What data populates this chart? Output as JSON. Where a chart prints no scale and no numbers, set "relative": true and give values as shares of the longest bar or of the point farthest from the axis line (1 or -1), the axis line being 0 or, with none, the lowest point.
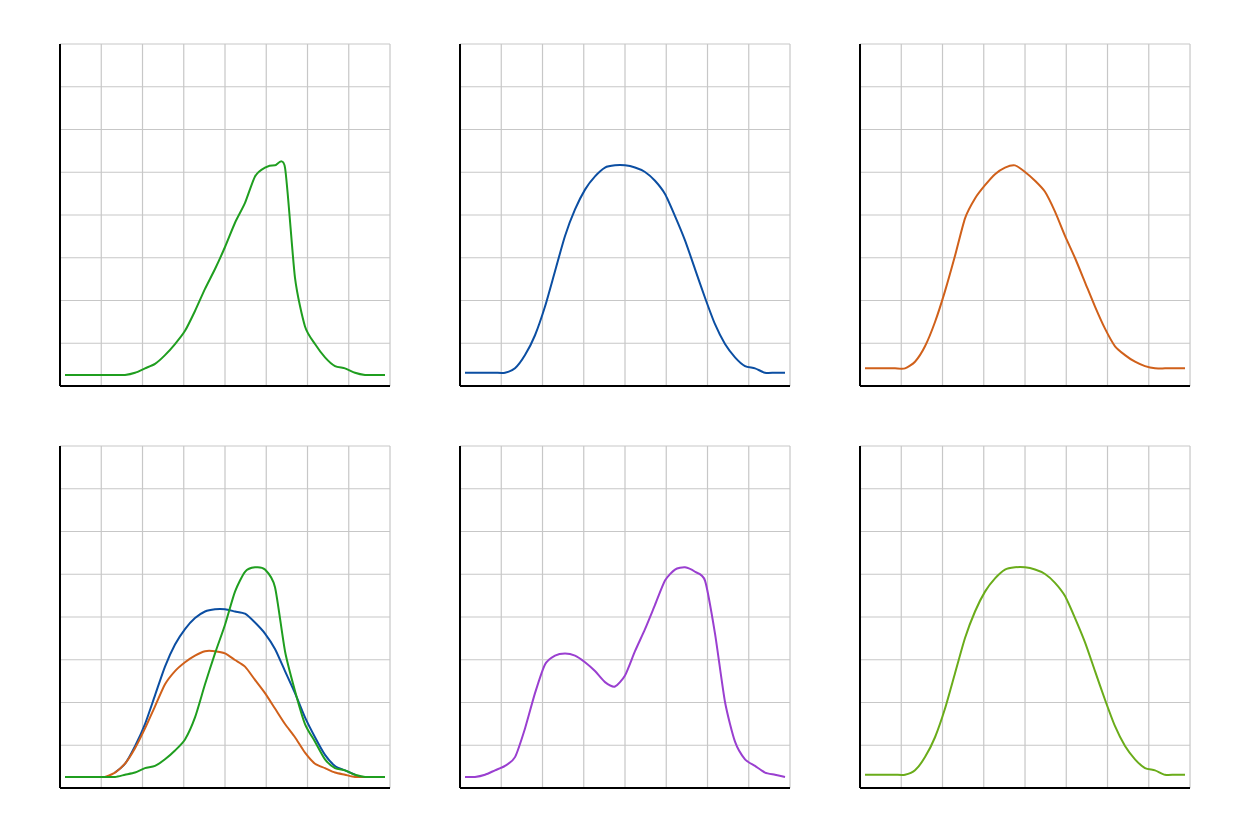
{
  "chart_data": [
    {
      "type": "line",
      "relative": true,
      "grid": true,
      "tick_labels": false,
      "categories": [
        null,
        null,
        null,
        null,
        null,
        null,
        null,
        null,
        null,
        null,
        null,
        null,
        null,
        null,
        null,
        null,
        null,
        null,
        null,
        null,
        null,
        null,
        null,
        null,
        null,
        null,
        null,
        null,
        null,
        null,
        null,
        null,
        null
      ],
      "series": [
        {
          "color": "#1f9e1f",
          "values": [
            0.05,
            0.05,
            0.05,
            0.05,
            0.05,
            0.05,
            0.05,
            0.06,
            0.08,
            0.1,
            0.14,
            0.19,
            0.25,
            0.34,
            0.44,
            0.53,
            0.63,
            0.74,
            0.83,
            0.95,
            0.99,
            1,
            0.99,
            0.49,
            0.27,
            0.19,
            0.13,
            0.09,
            0.08,
            0.06,
            0.05,
            0.05,
            0.05
          ]
        }
      ]
    },
    {
      "type": "line",
      "relative": true,
      "grid": true,
      "tick_labels": false,
      "categories": [
        null,
        null,
        null,
        null,
        null,
        null,
        null,
        null,
        null,
        null,
        null,
        null,
        null,
        null,
        null,
        null,
        null,
        null,
        null,
        null,
        null,
        null,
        null,
        null,
        null,
        null,
        null,
        null,
        null,
        null,
        null,
        null,
        null
      ],
      "series": [
        {
          "color": "#0b4ea2",
          "values": [
            0.06,
            0.06,
            0.06,
            0.06,
            0.06,
            0.08,
            0.14,
            0.23,
            0.36,
            0.52,
            0.68,
            0.8,
            0.89,
            0.95,
            0.99,
            1,
            1,
            0.99,
            0.97,
            0.93,
            0.87,
            0.77,
            0.66,
            0.53,
            0.4,
            0.28,
            0.19,
            0.13,
            0.09,
            0.08,
            0.06,
            0.06,
            0.06
          ]
        }
      ]
    },
    {
      "type": "line",
      "relative": true,
      "grid": true,
      "tick_labels": false,
      "categories": [
        null,
        null,
        null,
        null,
        null,
        null,
        null,
        null,
        null,
        null,
        null,
        null,
        null,
        null,
        null,
        null,
        null,
        null,
        null,
        null,
        null,
        null,
        null,
        null,
        null,
        null,
        null,
        null,
        null,
        null,
        null,
        null,
        null
      ],
      "series": [
        {
          "color": "#d0601a",
          "values": [
            0.08,
            0.08,
            0.08,
            0.08,
            0.08,
            0.11,
            0.18,
            0.29,
            0.43,
            0.59,
            0.76,
            0.85,
            0.91,
            0.96,
            0.99,
            1,
            0.97,
            0.93,
            0.88,
            0.79,
            0.68,
            0.58,
            0.47,
            0.36,
            0.26,
            0.18,
            0.14,
            0.11,
            0.09,
            0.08,
            0.08,
            0.08,
            0.08
          ]
        }
      ]
    },
    {
      "type": "line",
      "relative": true,
      "grid": true,
      "tick_labels": false,
      "categories": [
        null,
        null,
        null,
        null,
        null,
        null,
        null,
        null,
        null,
        null,
        null,
        null,
        null,
        null,
        null,
        null,
        null,
        null,
        null,
        null,
        null,
        null,
        null,
        null,
        null,
        null,
        null,
        null,
        null,
        null,
        null,
        null,
        null
      ],
      "series": [
        {
          "color": "#0b4ea2",
          "values": [
            null,
            null,
            null,
            null,
            null,
            0.07,
            0.11,
            0.19,
            0.29,
            0.42,
            0.55,
            0.65,
            0.72,
            0.77,
            0.8,
            0.81,
            0.81,
            0.8,
            0.79,
            0.75,
            0.7,
            0.63,
            0.53,
            0.43,
            0.32,
            0.23,
            0.15,
            0.1,
            0.08,
            0.06,
            null,
            null,
            null
          ]
        },
        {
          "color": "#d0601a",
          "values": [
            null,
            null,
            null,
            null,
            0.05,
            0.07,
            0.11,
            0.18,
            0.27,
            0.37,
            0.47,
            0.53,
            0.57,
            0.6,
            0.62,
            0.62,
            0.61,
            0.58,
            0.55,
            0.49,
            0.43,
            0.36,
            0.29,
            0.23,
            0.16,
            0.11,
            0.09,
            0.07,
            0.06,
            0.05,
            0.05,
            null,
            null
          ]
        },
        {
          "color": "#1f9e1f",
          "values": [
            0.05,
            0.05,
            0.05,
            0.05,
            0.05,
            0.05,
            0.06,
            0.07,
            0.09,
            0.1,
            0.13,
            0.17,
            0.22,
            0.32,
            0.47,
            0.61,
            0.74,
            0.89,
            0.98,
            1,
            0.99,
            0.91,
            0.62,
            0.44,
            0.29,
            0.21,
            0.13,
            0.09,
            0.08,
            0.06,
            0.05,
            0.05,
            0.05
          ]
        }
      ]
    },
    {
      "type": "line",
      "relative": true,
      "grid": true,
      "tick_labels": false,
      "categories": [
        null,
        null,
        null,
        null,
        null,
        null,
        null,
        null,
        null,
        null,
        null,
        null,
        null,
        null,
        null,
        null,
        null,
        null,
        null,
        null,
        null,
        null,
        null,
        null,
        null,
        null,
        null,
        null,
        null,
        null,
        null,
        null,
        null
      ],
      "series": [
        {
          "color": "#9a3fd0",
          "values": [
            0.05,
            0.05,
            0.06,
            0.08,
            0.1,
            0.14,
            0.27,
            0.43,
            0.56,
            0.6,
            0.61,
            0.6,
            0.57,
            0.53,
            0.48,
            0.46,
            0.51,
            0.62,
            0.72,
            0.83,
            0.94,
            0.99,
            1,
            0.98,
            0.94,
            0.7,
            0.39,
            0.21,
            0.13,
            0.1,
            0.07,
            0.06,
            0.05
          ]
        }
      ]
    },
    {
      "type": "line",
      "relative": true,
      "grid": true,
      "tick_labels": false,
      "categories": [
        null,
        null,
        null,
        null,
        null,
        null,
        null,
        null,
        null,
        null,
        null,
        null,
        null,
        null,
        null,
        null,
        null,
        null,
        null,
        null,
        null,
        null,
        null,
        null,
        null,
        null,
        null,
        null,
        null,
        null,
        null,
        null,
        null
      ],
      "series": [
        {
          "color": "#6aac1a",
          "values": [
            0.06,
            0.06,
            0.06,
            0.06,
            0.06,
            0.08,
            0.14,
            0.23,
            0.36,
            0.52,
            0.68,
            0.8,
            0.89,
            0.95,
            0.99,
            1,
            1,
            0.99,
            0.97,
            0.93,
            0.87,
            0.77,
            0.66,
            0.53,
            0.4,
            0.28,
            0.19,
            0.13,
            0.09,
            0.08,
            0.06,
            0.06,
            0.06
          ]
        }
      ]
    }
  ]
}
